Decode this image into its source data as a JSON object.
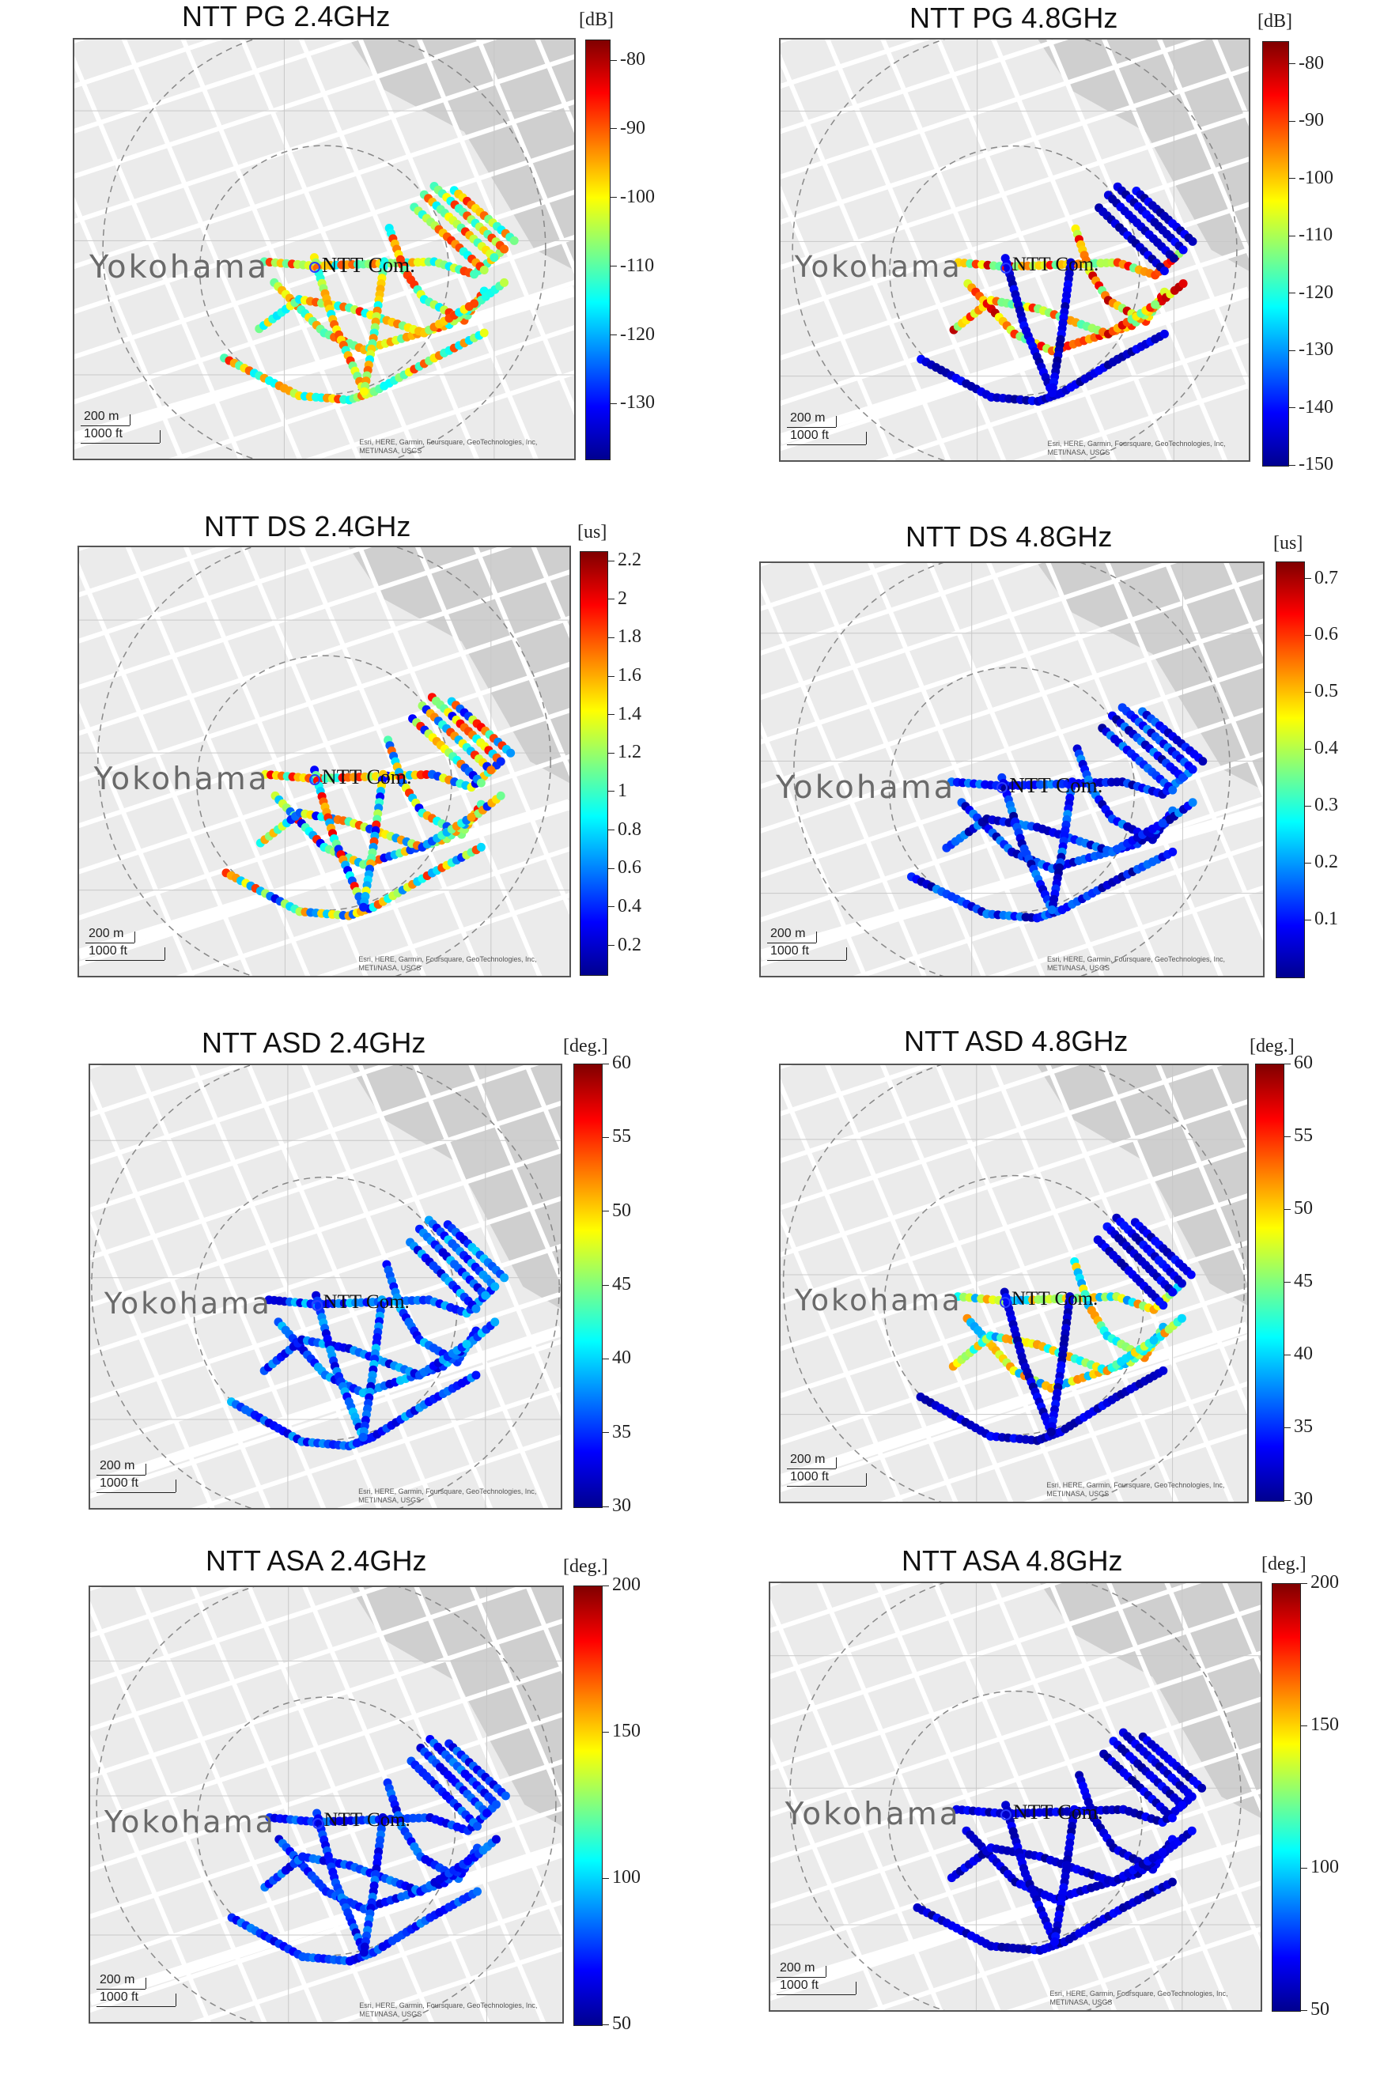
{
  "panels": [
    {
      "title": "NTT PG 2.4GHz",
      "unit": "[dB]",
      "ticks": [
        "-80",
        "-90",
        "-100",
        "-110",
        "-120",
        "-130"
      ],
      "range": [
        -138,
        -77
      ]
    },
    {
      "title": "NTT PG 4.8GHz",
      "unit": "[dB]",
      "ticks": [
        "-80",
        "-90",
        "-100",
        "-110",
        "-120",
        "-130",
        "-140",
        "-150"
      ],
      "range": [
        -150,
        -76
      ]
    },
    {
      "title": "NTT DS 2.4GHz",
      "unit": "[us]",
      "ticks": [
        "2.2",
        "2",
        "1.8",
        "1.6",
        "1.4",
        "1.2",
        "1",
        "0.8",
        "0.6",
        "0.4",
        "0.2"
      ],
      "range": [
        0.05,
        2.25
      ]
    },
    {
      "title": "NTT DS 4.8GHz",
      "unit": "[us]",
      "ticks": [
        "0.7",
        "0.6",
        "0.5",
        "0.4",
        "0.3",
        "0.2",
        "0.1"
      ],
      "range": [
        0.0,
        0.73
      ]
    },
    {
      "title": "NTT ASD 2.4GHz",
      "unit": "[deg.]",
      "ticks": [
        "60",
        "55",
        "50",
        "45",
        "40",
        "35",
        "30"
      ],
      "range": [
        30,
        60
      ]
    },
    {
      "title": "NTT ASD 4.8GHz",
      "unit": "[deg.]",
      "ticks": [
        "60",
        "55",
        "50",
        "45",
        "40",
        "35",
        "30"
      ],
      "range": [
        30,
        60
      ]
    },
    {
      "title": "NTT ASA 2.4GHz",
      "unit": "[deg.]",
      "ticks": [
        "200",
        "150",
        "100",
        "50"
      ],
      "range": [
        50,
        200
      ]
    },
    {
      "title": "NTT ASA 4.8GHz",
      "unit": "[deg.]",
      "ticks": [
        "200",
        "150",
        "100",
        "50"
      ],
      "range": [
        50,
        200
      ]
    }
  ],
  "map": {
    "place_label": "Yokohama",
    "site_label": "NTT Com.",
    "scale_metric": "200 m",
    "scale_imperial": "1000 ft",
    "attribution_line1": "Esri, HERE, Garmin, Foursquare, GeoTechnologies, Inc,",
    "attribution_line2": "METI/NASA, USGS"
  },
  "colormap": "jet"
}
